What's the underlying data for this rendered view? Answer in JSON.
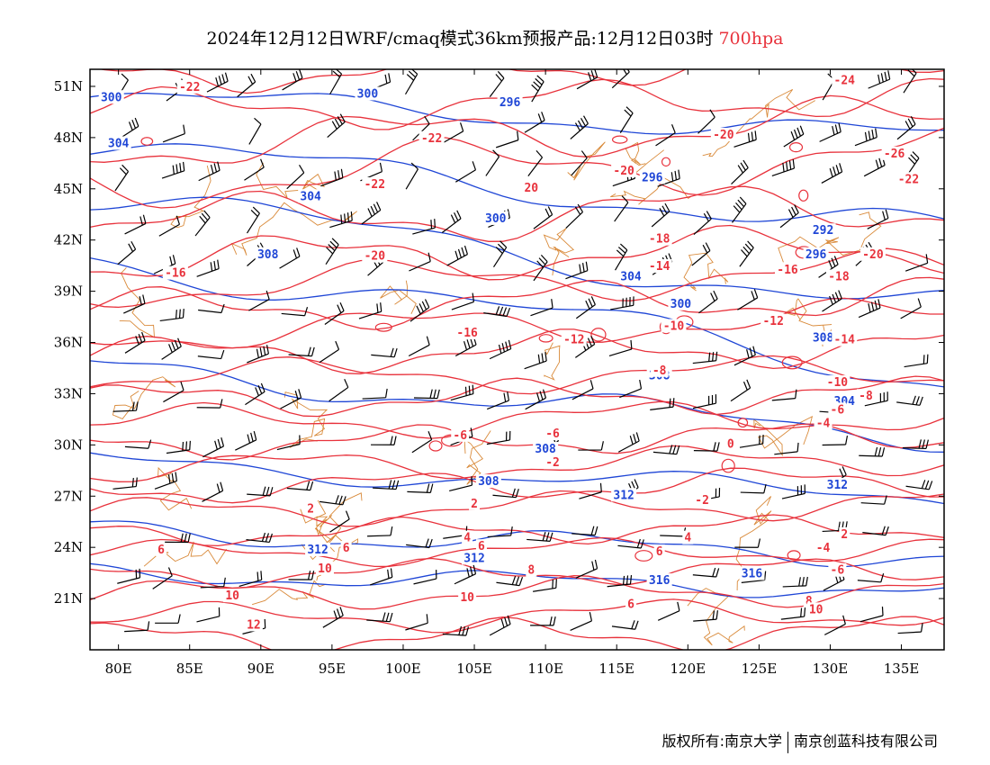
{
  "header": {
    "title": "2024年12月12日WRF/cmaq模式36km预报产品:12月12日03时",
    "level": "700hpa"
  },
  "axes": {
    "y_ticks": [
      "51N",
      "48N",
      "45N",
      "42N",
      "39N",
      "36N",
      "33N",
      "30N",
      "27N",
      "24N",
      "21N"
    ],
    "x_ticks": [
      "80E",
      "85E",
      "90E",
      "95E",
      "100E",
      "105E",
      "110E",
      "115E",
      "120E",
      "125E",
      "130E",
      "135E"
    ]
  },
  "colors": {
    "temperature": "#e8323c",
    "height": "#1f46d6",
    "border": "#d98a3a",
    "wind": "#000000"
  },
  "map": {
    "lon_range": [
      78,
      138
    ],
    "lat_range": [
      18,
      52
    ],
    "temp_labels": [
      {
        "t": "-22",
        "lon": 85,
        "lat": 50.9
      },
      {
        "t": "-22",
        "lon": 102,
        "lat": 47.9
      },
      {
        "t": "-22",
        "lon": 98,
        "lat": 45.2
      },
      {
        "t": "-20",
        "lon": 122.5,
        "lat": 48.1
      },
      {
        "t": "-20",
        "lon": 115.5,
        "lat": 46.0
      },
      {
        "t": "20",
        "lon": 109,
        "lat": 45.0
      },
      {
        "t": "-20",
        "lon": 98,
        "lat": 41.0
      },
      {
        "t": "-18",
        "lon": 118,
        "lat": 42.0
      },
      {
        "t": "-16",
        "lon": 84,
        "lat": 40.0
      },
      {
        "t": "-16",
        "lon": 127,
        "lat": 40.2
      },
      {
        "t": "-18",
        "lon": 130.6,
        "lat": 39.8
      },
      {
        "t": "-14",
        "lon": 118,
        "lat": 40.4
      },
      {
        "t": "-16",
        "lon": 104.5,
        "lat": 36.5
      },
      {
        "t": "-12",
        "lon": 112,
        "lat": 36.1
      },
      {
        "t": "-12",
        "lon": 126,
        "lat": 37.2
      },
      {
        "t": "-10",
        "lon": 119,
        "lat": 36.9
      },
      {
        "t": "-14",
        "lon": 131,
        "lat": 36.1
      },
      {
        "t": "-8",
        "lon": 118,
        "lat": 34.3
      },
      {
        "t": "-10",
        "lon": 130.5,
        "lat": 33.6
      },
      {
        "t": "-8",
        "lon": 132.5,
        "lat": 32.8
      },
      {
        "t": "-6",
        "lon": 130.5,
        "lat": 32.0
      },
      {
        "t": "-4",
        "lon": 129.5,
        "lat": 31.2
      },
      {
        "t": "-6",
        "lon": 104,
        "lat": 30.5
      },
      {
        "t": "-6",
        "lon": 110.5,
        "lat": 30.6
      },
      {
        "t": "0",
        "lon": 123,
        "lat": 30.0
      },
      {
        "t": "-2",
        "lon": 110.5,
        "lat": 28.9
      },
      {
        "t": "-2",
        "lon": 121,
        "lat": 26.7
      },
      {
        "t": "2",
        "lon": 105,
        "lat": 26.5
      },
      {
        "t": "2",
        "lon": 93.5,
        "lat": 26.2
      },
      {
        "t": "2",
        "lon": 131,
        "lat": 24.7
      },
      {
        "t": "4",
        "lon": 104.5,
        "lat": 24.5
      },
      {
        "t": "4",
        "lon": 120,
        "lat": 24.5
      },
      {
        "t": "6",
        "lon": 105.5,
        "lat": 24.0
      },
      {
        "t": "6",
        "lon": 83,
        "lat": 23.8
      },
      {
        "t": "6",
        "lon": 96,
        "lat": 23.9
      },
      {
        "t": "-4",
        "lon": 129.5,
        "lat": 23.9
      },
      {
        "t": "6",
        "lon": 118,
        "lat": 23.7
      },
      {
        "t": "8",
        "lon": 109,
        "lat": 22.6
      },
      {
        "t": "-6",
        "lon": 130.5,
        "lat": 22.6
      },
      {
        "t": "10",
        "lon": 94.5,
        "lat": 22.7
      },
      {
        "t": "10",
        "lon": 88,
        "lat": 21.1
      },
      {
        "t": "10",
        "lon": 104.5,
        "lat": 21.0
      },
      {
        "t": "6",
        "lon": 116,
        "lat": 20.6
      },
      {
        "t": "8",
        "lon": 128.5,
        "lat": 20.8
      },
      {
        "t": "10",
        "lon": 129,
        "lat": 20.3
      },
      {
        "t": "12",
        "lon": 89.5,
        "lat": 19.4
      },
      {
        "t": "-24",
        "lon": 131,
        "lat": 51.3
      },
      {
        "t": "-26",
        "lon": 134.5,
        "lat": 47.0
      },
      {
        "t": "-22",
        "lon": 135.5,
        "lat": 45.5
      },
      {
        "t": "-20",
        "lon": 133,
        "lat": 41.1
      }
    ],
    "height_labels": [
      {
        "t": "300",
        "lon": 79.5,
        "lat": 50.3
      },
      {
        "t": "300",
        "lon": 97.5,
        "lat": 50.5
      },
      {
        "t": "296",
        "lon": 107.5,
        "lat": 50.0
      },
      {
        "t": "304",
        "lon": 80,
        "lat": 47.6
      },
      {
        "t": "304",
        "lon": 93.5,
        "lat": 44.5
      },
      {
        "t": "296",
        "lon": 117.5,
        "lat": 45.6
      },
      {
        "t": "300",
        "lon": 106.5,
        "lat": 43.2
      },
      {
        "t": "292",
        "lon": 129.5,
        "lat": 42.5
      },
      {
        "t": "296",
        "lon": 129,
        "lat": 41.1
      },
      {
        "t": "308",
        "lon": 90.5,
        "lat": 41.1
      },
      {
        "t": "304",
        "lon": 116,
        "lat": 39.8
      },
      {
        "t": "300",
        "lon": 119.5,
        "lat": 38.2
      },
      {
        "t": "308",
        "lon": 129.5,
        "lat": 36.2
      },
      {
        "t": "308",
        "lon": 118,
        "lat": 34.0
      },
      {
        "t": "304",
        "lon": 131,
        "lat": 32.5
      },
      {
        "t": "308",
        "lon": 110,
        "lat": 29.7
      },
      {
        "t": "308",
        "lon": 106,
        "lat": 27.8
      },
      {
        "t": "312",
        "lon": 115.5,
        "lat": 27.0
      },
      {
        "t": "312",
        "lon": 130.5,
        "lat": 27.6
      },
      {
        "t": "312",
        "lon": 94,
        "lat": 23.8
      },
      {
        "t": "312",
        "lon": 105,
        "lat": 23.3
      },
      {
        "t": "316",
        "lon": 118,
        "lat": 22.0
      },
      {
        "t": "316",
        "lon": 124.5,
        "lat": 22.4
      }
    ]
  },
  "footer": {
    "left": "版权所有:南京大学",
    "right": "南京创蓝科技有限公司"
  }
}
